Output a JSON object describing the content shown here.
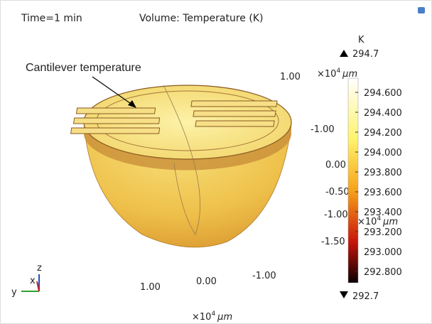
{
  "header": {
    "time": "Time=1 min",
    "title": "Volume: Temperature (K)"
  },
  "annotation": "Cantilever temperature",
  "colorbar": {
    "unit": "K",
    "max": "294.7",
    "min": "292.7",
    "ticks": [
      "294.600",
      "294.400",
      "294.200",
      "294.000",
      "293.800",
      "293.600",
      "293.400",
      "293.200",
      "293.000",
      "292.800"
    ]
  },
  "axes": {
    "labels": [
      "1.00",
      "-1.00",
      "0.00",
      "-0.50",
      "-1.00",
      "-1.50",
      "1.00",
      "0.00",
      "-1.00"
    ],
    "scales": [
      {
        "base": "×10",
        "exp": "4",
        "unit": "μm"
      },
      {
        "base": "×10",
        "exp": "4",
        "unit": "μm"
      },
      {
        "base": "×10",
        "exp": "4",
        "unit": "μm"
      }
    ]
  },
  "triad": {
    "z": "z",
    "x": "x",
    "y": "y"
  }
}
